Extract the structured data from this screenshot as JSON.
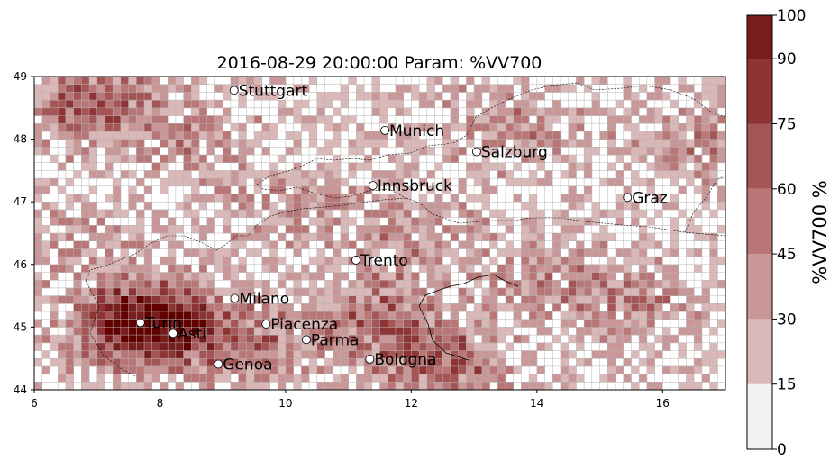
{
  "title": "2016-08-29 20:00:00 Param: %VV700",
  "map": {
    "lon_range": [
      6,
      17
    ],
    "lat_range": [
      44,
      49
    ],
    "x_ticks": [
      "6",
      "8",
      "10",
      "12",
      "14",
      "16"
    ],
    "y_ticks": [
      "44",
      "45",
      "46",
      "47",
      "48",
      "49"
    ],
    "grid_step_deg": 0.125
  },
  "cities": [
    {
      "name": "Stuttgart",
      "lon": 9.18,
      "lat": 48.78
    },
    {
      "name": "Munich",
      "lon": 11.58,
      "lat": 48.14
    },
    {
      "name": "Salzburg",
      "lon": 13.04,
      "lat": 47.8
    },
    {
      "name": "Innsbruck",
      "lon": 11.39,
      "lat": 47.26
    },
    {
      "name": "Graz",
      "lon": 15.44,
      "lat": 47.07
    },
    {
      "name": "Trento",
      "lon": 11.12,
      "lat": 46.07
    },
    {
      "name": "Milano",
      "lon": 9.19,
      "lat": 45.46
    },
    {
      "name": "Turin",
      "lon": 7.69,
      "lat": 45.07
    },
    {
      "name": "Piacenza",
      "lon": 9.69,
      "lat": 45.05
    },
    {
      "name": "Asti",
      "lon": 8.21,
      "lat": 44.9
    },
    {
      "name": "Parma",
      "lon": 10.33,
      "lat": 44.8
    },
    {
      "name": "Bologna",
      "lon": 11.34,
      "lat": 44.49
    },
    {
      "name": "Genoa",
      "lon": 8.93,
      "lat": 44.41
    }
  ],
  "colorbar": {
    "label": "%VV700  %",
    "levels": [
      0,
      15,
      30,
      45,
      60,
      75,
      90,
      100
    ],
    "tick_labels": [
      "0",
      "15",
      "30",
      "45",
      "60",
      "75",
      "90",
      "100"
    ],
    "colors": [
      "#f2f2f2",
      "#dbb8b8",
      "#c99797",
      "#b87676",
      "#a45555",
      "#8e3434",
      "#781d1d",
      "#620000"
    ]
  },
  "colors": {
    "grid_line": "#b4b4b4",
    "border_line": "#000000",
    "marker_fill": "#ffffff"
  }
}
